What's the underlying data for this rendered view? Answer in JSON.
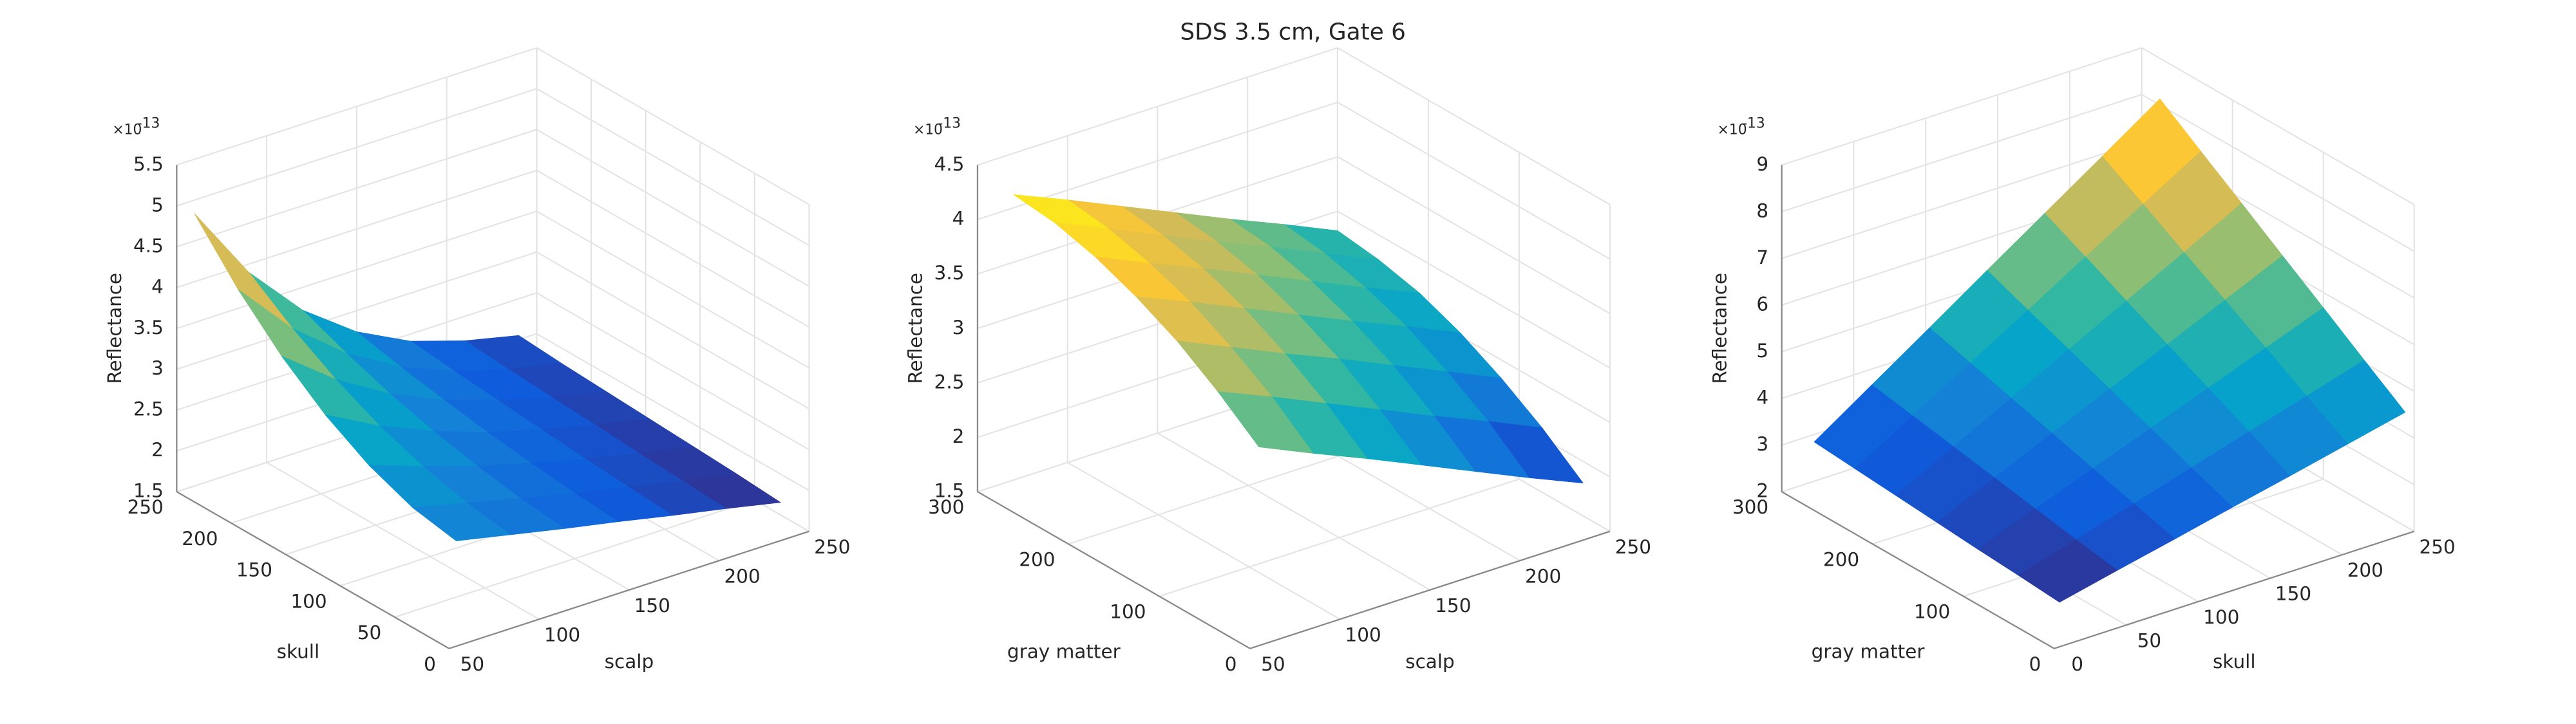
{
  "title": "SDS 3.5 cm, Gate 6",
  "colormap": [
    "#352a87",
    "#0f5cdd",
    "#1481d6",
    "#06a4ca",
    "#2eb7a4",
    "#87bf77",
    "#d1bb59",
    "#fec832",
    "#f9fb0e"
  ],
  "chart_data": [
    {
      "type": "surface",
      "x_label": "scalp",
      "y_label": "skull",
      "z_label": "Reflectance",
      "zscale": {
        "base": "×10",
        "exponent": "-13"
      },
      "x": [
        60,
        90,
        120,
        150,
        180,
        210,
        240
      ],
      "y": [
        10,
        50,
        90,
        130,
        170,
        210,
        250
      ],
      "values": [
        [
          2.67,
          2.53,
          2.39,
          2.26,
          2.12,
          1.99,
          1.85
        ],
        [
          2.77,
          2.61,
          2.45,
          2.3,
          2.16,
          2.02,
          1.89
        ],
        [
          2.98,
          2.75,
          2.54,
          2.36,
          2.2,
          2.05,
          1.92
        ],
        [
          3.29,
          2.94,
          2.66,
          2.43,
          2.25,
          2.09,
          1.95
        ],
        [
          3.7,
          3.2,
          2.81,
          2.52,
          2.3,
          2.12,
          1.98
        ],
        [
          4.21,
          3.52,
          3.0,
          2.62,
          2.35,
          2.16,
          2.01
        ],
        [
          4.83,
          3.9,
          3.22,
          2.74,
          2.41,
          2.2,
          2.05
        ]
      ],
      "xlim": [
        50,
        250
      ],
      "ylim": [
        0,
        250
      ],
      "zlim": [
        1.5,
        5.5
      ],
      "xticks": [
        50,
        100,
        150,
        200,
        250
      ],
      "yticks": [
        0,
        50,
        100,
        150,
        200,
        250
      ],
      "zticks": [
        1.5,
        2,
        2.5,
        3,
        3.5,
        4,
        4.5,
        5,
        5.5
      ],
      "grid": true
    },
    {
      "type": "surface",
      "x_label": "scalp",
      "y_label": "gray matter",
      "z_label": "Reflectance",
      "zscale": {
        "base": "×10",
        "exponent": "-13"
      },
      "x": [
        60,
        90,
        120,
        150,
        180,
        210,
        240
      ],
      "y": [
        10,
        55,
        100,
        145,
        190,
        235,
        280
      ],
      "values": [
        [
          3.25,
          3.03,
          2.82,
          2.6,
          2.38,
          2.16,
          1.95
        ],
        [
          3.54,
          3.33,
          3.11,
          2.89,
          2.67,
          2.46,
          2.24
        ],
        [
          3.79,
          3.57,
          3.35,
          3.14,
          2.92,
          2.7,
          2.48
        ],
        [
          3.98,
          3.77,
          3.55,
          3.33,
          3.11,
          2.9,
          2.68
        ],
        [
          4.13,
          3.91,
          3.7,
          3.48,
          3.26,
          3.04,
          2.83
        ],
        [
          4.23,
          4.01,
          3.79,
          3.57,
          3.36,
          3.14,
          2.92
        ],
        [
          4.27,
          4.06,
          3.84,
          3.62,
          3.4,
          3.19,
          2.97
        ]
      ],
      "xlim": [
        50,
        250
      ],
      "ylim": [
        0,
        300
      ],
      "zlim": [
        1.5,
        4.5
      ],
      "xticks": [
        50,
        100,
        150,
        200,
        250
      ],
      "yticks": [
        0,
        100,
        200,
        300
      ],
      "zticks": [
        1.5,
        2,
        2.5,
        3,
        3.5,
        4,
        4.5
      ],
      "grid": true
    },
    {
      "type": "surface",
      "x_label": "skull",
      "y_label": "gray matter",
      "z_label": "Reflectance",
      "zscale": {
        "base": "×10",
        "exponent": "-13"
      },
      "x": [
        10,
        50,
        90,
        130,
        170,
        210,
        250
      ],
      "y": [
        10,
        55,
        100,
        145,
        190,
        235,
        280
      ],
      "values": [
        [
          2.78,
          3.06,
          3.33,
          3.61,
          3.88,
          4.16,
          4.44
        ],
        [
          2.85,
          3.21,
          3.58,
          3.95,
          4.32,
          4.68,
          5.05
        ],
        [
          2.91,
          3.37,
          3.83,
          4.29,
          4.75,
          5.21,
          5.67
        ],
        [
          2.98,
          3.53,
          4.08,
          4.63,
          5.18,
          5.73,
          6.28
        ],
        [
          3.05,
          3.69,
          4.33,
          4.97,
          5.61,
          6.25,
          6.9
        ],
        [
          3.12,
          3.85,
          4.58,
          5.31,
          6.05,
          6.78,
          7.51
        ],
        [
          3.19,
          4.01,
          4.83,
          5.66,
          6.48,
          7.3,
          8.13
        ]
      ],
      "xlim": [
        0,
        250
      ],
      "ylim": [
        0,
        300
      ],
      "zlim": [
        2,
        9
      ],
      "xticks": [
        0,
        50,
        100,
        150,
        200,
        250
      ],
      "yticks": [
        0,
        100,
        200,
        300
      ],
      "zticks": [
        2,
        3,
        4,
        5,
        6,
        7,
        8,
        9
      ],
      "grid": true
    }
  ]
}
